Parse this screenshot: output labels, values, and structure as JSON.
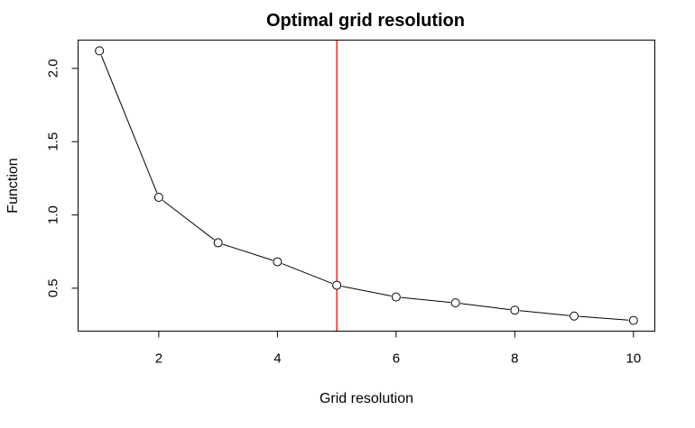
{
  "chart_data": {
    "type": "line",
    "title": "Optimal grid resolution",
    "xlabel": "Grid resolution",
    "ylabel": "Function",
    "x": [
      1,
      2,
      3,
      4,
      5,
      6,
      7,
      8,
      9,
      10
    ],
    "y": [
      2.12,
      1.12,
      0.81,
      0.68,
      0.52,
      0.44,
      0.4,
      0.35,
      0.31,
      0.28
    ],
    "xlim": [
      0.64,
      10.36
    ],
    "ylim": [
      0.207,
      2.193
    ],
    "xticks": [
      2,
      4,
      6,
      8,
      10
    ],
    "yticks": [
      0.5,
      1.0,
      1.5,
      2.0
    ],
    "xtick_labels": [
      "2",
      "4",
      "6",
      "8",
      "10"
    ],
    "ytick_labels": [
      "0.5",
      "1.0",
      "1.5",
      "2.0"
    ],
    "marker": "open-circle",
    "line_color": "#000000",
    "vline": {
      "x": 5,
      "color": "#ff0000"
    },
    "grid": false
  }
}
